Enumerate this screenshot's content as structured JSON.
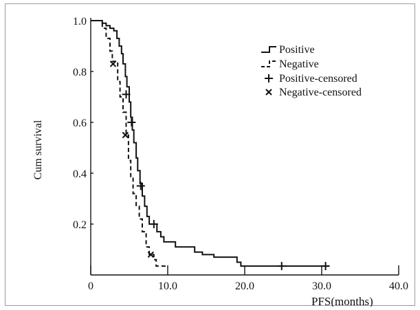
{
  "chart_data": {
    "type": "line",
    "title": "",
    "xlabel": "PFS(months)",
    "ylabel": "Cum survival",
    "xlim": [
      0,
      40
    ],
    "ylim": [
      0,
      1.0
    ],
    "x_ticks": [
      0,
      10,
      20,
      30,
      40
    ],
    "x_tick_labels": [
      "0",
      "10.0",
      "20.0",
      "30.0",
      "40.0"
    ],
    "y_ticks": [
      0.2,
      0.4,
      0.6,
      0.8,
      1.0
    ],
    "y_tick_labels": [
      "0.2",
      "0.4",
      "0.6",
      "0.8",
      "1.0"
    ],
    "grid": false,
    "legend_position": "top-right",
    "series": [
      {
        "name": "Positive",
        "style": "solid",
        "step_points": [
          [
            0,
            1.0
          ],
          [
            1.5,
            1.0
          ],
          [
            1.5,
            0.99
          ],
          [
            2.0,
            0.99
          ],
          [
            2.0,
            0.98
          ],
          [
            2.5,
            0.98
          ],
          [
            2.5,
            0.97
          ],
          [
            3.0,
            0.97
          ],
          [
            3.0,
            0.96
          ],
          [
            3.4,
            0.96
          ],
          [
            3.4,
            0.93
          ],
          [
            3.7,
            0.93
          ],
          [
            3.7,
            0.9
          ],
          [
            4.0,
            0.9
          ],
          [
            4.0,
            0.87
          ],
          [
            4.2,
            0.87
          ],
          [
            4.2,
            0.83
          ],
          [
            4.5,
            0.83
          ],
          [
            4.5,
            0.78
          ],
          [
            4.7,
            0.78
          ],
          [
            4.7,
            0.74
          ],
          [
            5.0,
            0.74
          ],
          [
            5.0,
            0.68
          ],
          [
            5.2,
            0.68
          ],
          [
            5.2,
            0.62
          ],
          [
            5.4,
            0.62
          ],
          [
            5.4,
            0.57
          ],
          [
            5.6,
            0.57
          ],
          [
            5.6,
            0.52
          ],
          [
            5.9,
            0.52
          ],
          [
            5.9,
            0.46
          ],
          [
            6.1,
            0.46
          ],
          [
            6.1,
            0.41
          ],
          [
            6.4,
            0.41
          ],
          [
            6.4,
            0.36
          ],
          [
            6.7,
            0.36
          ],
          [
            6.7,
            0.31
          ],
          [
            7.0,
            0.31
          ],
          [
            7.0,
            0.27
          ],
          [
            7.3,
            0.27
          ],
          [
            7.3,
            0.23
          ],
          [
            7.6,
            0.23
          ],
          [
            7.6,
            0.2
          ],
          [
            8.6,
            0.2
          ],
          [
            8.6,
            0.17
          ],
          [
            9.1,
            0.17
          ],
          [
            9.1,
            0.15
          ],
          [
            9.5,
            0.15
          ],
          [
            9.5,
            0.13
          ],
          [
            11.0,
            0.13
          ],
          [
            11.0,
            0.11
          ],
          [
            13.5,
            0.11
          ],
          [
            13.5,
            0.09
          ],
          [
            14.5,
            0.09
          ],
          [
            14.5,
            0.08
          ],
          [
            16.0,
            0.08
          ],
          [
            16.0,
            0.07
          ],
          [
            19.0,
            0.07
          ],
          [
            19.0,
            0.05
          ],
          [
            19.5,
            0.05
          ],
          [
            19.5,
            0.035
          ],
          [
            31.0,
            0.035
          ]
        ],
        "censored": [
          [
            4.6,
            0.71
          ],
          [
            5.3,
            0.6
          ],
          [
            6.5,
            0.35
          ],
          [
            8.2,
            0.2
          ],
          [
            24.8,
            0.035
          ],
          [
            30.5,
            0.035
          ]
        ]
      },
      {
        "name": "Negative",
        "style": "dashed",
        "step_points": [
          [
            0,
            1.0
          ],
          [
            1.5,
            1.0
          ],
          [
            1.5,
            0.97
          ],
          [
            2.0,
            0.97
          ],
          [
            2.0,
            0.93
          ],
          [
            2.5,
            0.93
          ],
          [
            2.5,
            0.88
          ],
          [
            2.8,
            0.88
          ],
          [
            2.8,
            0.84
          ],
          [
            3.5,
            0.84
          ],
          [
            3.5,
            0.76
          ],
          [
            3.8,
            0.76
          ],
          [
            3.8,
            0.7
          ],
          [
            4.2,
            0.7
          ],
          [
            4.2,
            0.64
          ],
          [
            4.6,
            0.64
          ],
          [
            4.6,
            0.55
          ],
          [
            4.9,
            0.55
          ],
          [
            4.9,
            0.45
          ],
          [
            5.2,
            0.45
          ],
          [
            5.2,
            0.38
          ],
          [
            5.5,
            0.38
          ],
          [
            5.5,
            0.32
          ],
          [
            5.9,
            0.32
          ],
          [
            5.9,
            0.27
          ],
          [
            6.3,
            0.27
          ],
          [
            6.3,
            0.22
          ],
          [
            6.7,
            0.22
          ],
          [
            6.7,
            0.17
          ],
          [
            7.2,
            0.17
          ],
          [
            7.2,
            0.11
          ],
          [
            7.6,
            0.11
          ],
          [
            7.6,
            0.08
          ],
          [
            8.2,
            0.08
          ],
          [
            8.2,
            0.06
          ],
          [
            8.5,
            0.06
          ],
          [
            8.5,
            0.035
          ],
          [
            10.0,
            0.035
          ]
        ],
        "censored": [
          [
            2.9,
            0.83
          ],
          [
            4.5,
            0.55
          ],
          [
            7.8,
            0.08
          ]
        ]
      }
    ],
    "legend": [
      {
        "label": "Positive",
        "marker": "solid-step"
      },
      {
        "label": "Negative",
        "marker": "dashed-step"
      },
      {
        "label": "Positive-censored",
        "marker": "plus"
      },
      {
        "label": "Negative-censored",
        "marker": "cross"
      }
    ]
  }
}
